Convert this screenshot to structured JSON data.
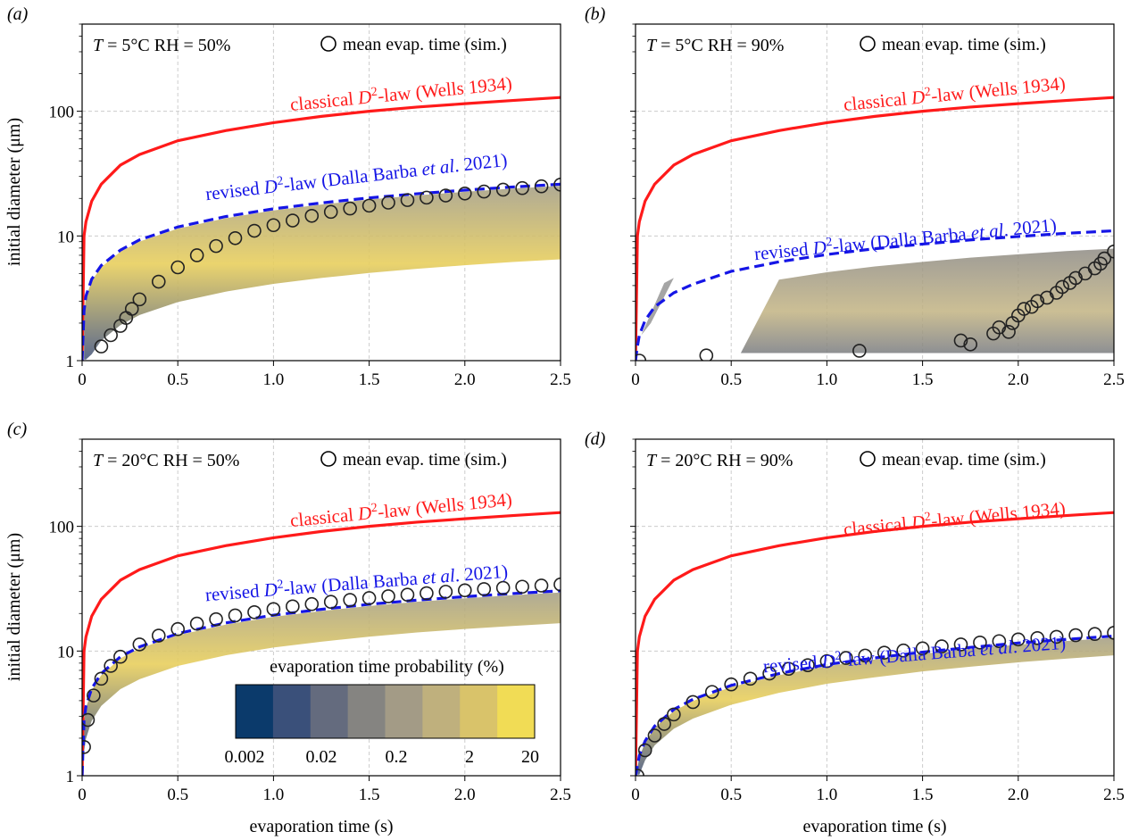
{
  "figure": {
    "ylabel": "initial diameter (μm)",
    "xlabel": "evaporation time (s)",
    "colorbar": {
      "title": "evaporation time probability (%)",
      "tick_labels": [
        "0.002",
        "0.02",
        "0.2",
        "2",
        "20"
      ],
      "colors": [
        "#0b3a6b",
        "#3a507a",
        "#646b7e",
        "#858481",
        "#a39b86",
        "#bfb07d",
        "#d9c36a",
        "#f1dc55"
      ]
    },
    "colors": {
      "classical": "#ff1a1a",
      "revised": "#1515e6",
      "marker": "#222222",
      "grid": "#cccccc"
    }
  },
  "chart_data": [
    {
      "type": "line",
      "panel_label": "(a)",
      "condition_T": "= 5°C RH = 50%",
      "legend_marker": "mean evap. time (sim.)",
      "xlim": [
        0,
        2.5
      ],
      "ylim": [
        1,
        500
      ],
      "yscale": "log",
      "x_ticks": [
        "0",
        "0.5",
        "1.0",
        "1.5",
        "2.0",
        "2.5"
      ],
      "y_ticks": [
        "1",
        "10",
        "100"
      ],
      "series": [
        {
          "name": "classical D²-law (Wells 1934)",
          "label_main": "classical ",
          "label_sup": "-law (Wells 1934)",
          "x": [
            0.01,
            0.02,
            0.05,
            0.1,
            0.2,
            0.3,
            0.5,
            0.75,
            1.0,
            1.25,
            1.5,
            1.75,
            2.0,
            2.25,
            2.5
          ],
          "y": [
            10,
            13,
            19,
            26,
            37,
            45,
            58,
            70,
            81,
            91,
            100,
            108,
            115,
            122,
            129
          ]
        },
        {
          "name": "revised D²-law (Dalla Barba et al. 2021)",
          "label_main": "revised ",
          "label_sup": "-law (Dalla Barba ",
          "label_etal": "et al",
          "label_end": ". 2021)",
          "x": [
            0.01,
            0.02,
            0.05,
            0.1,
            0.2,
            0.3,
            0.5,
            0.75,
            1.0,
            1.25,
            1.5,
            1.75,
            2.0,
            2.25,
            2.5
          ],
          "y": [
            2.5,
            3.3,
            4.5,
            5.8,
            7.7,
            9.3,
            11.8,
            14.3,
            16.5,
            18.4,
            20.2,
            21.8,
            23.3,
            24.7,
            26
          ]
        },
        {
          "name": "mean evap. time (sim.)",
          "x": [
            0.1,
            0.15,
            0.2,
            0.23,
            0.26,
            0.3,
            0.4,
            0.5,
            0.6,
            0.7,
            0.8,
            0.9,
            1.0,
            1.1,
            1.2,
            1.3,
            1.4,
            1.5,
            1.6,
            1.7,
            1.8,
            1.9,
            2.0,
            2.1,
            2.2,
            2.3,
            2.4,
            2.5
          ],
          "y": [
            1.3,
            1.6,
            1.9,
            2.2,
            2.6,
            3.1,
            4.3,
            5.6,
            7.0,
            8.3,
            9.6,
            11,
            12.2,
            13.3,
            14.5,
            15.6,
            16.6,
            17.5,
            18.5,
            19.4,
            20.3,
            21.1,
            21.9,
            22.7,
            23.5,
            24.2,
            25,
            25.8
          ]
        }
      ]
    },
    {
      "type": "line",
      "panel_label": "(b)",
      "condition_T": "= 5°C RH  = 90%",
      "legend_marker": "mean evap. time (sim.)",
      "xlim": [
        0,
        2.5
      ],
      "ylim": [
        1,
        500
      ],
      "yscale": "log",
      "x_ticks": [
        "0",
        "0.5",
        "1.0",
        "1.5",
        "2.0",
        "2.5"
      ],
      "y_ticks": [
        "1",
        "10",
        "100"
      ],
      "series": [
        {
          "name": "classical D²-law (Wells 1934)",
          "label_main": "classical ",
          "label_sup": "-law (Wells 1934)",
          "x": [
            0.01,
            0.02,
            0.05,
            0.1,
            0.2,
            0.3,
            0.5,
            0.75,
            1.0,
            1.25,
            1.5,
            1.75,
            2.0,
            2.25,
            2.5
          ],
          "y": [
            10,
            13,
            19,
            26,
            37,
            45,
            58,
            70,
            81,
            91,
            100,
            108,
            115,
            122,
            129
          ]
        },
        {
          "name": "revised D²-law (Dalla Barba et al. 2021)",
          "label_main": "revised ",
          "label_sup": "-law (Dalla Barba ",
          "label_etal": "et al",
          "label_end": ". 2021)",
          "x": [
            0.01,
            0.02,
            0.05,
            0.1,
            0.2,
            0.3,
            0.5,
            0.75,
            1.0,
            1.25,
            1.5,
            1.75,
            2.0,
            2.25,
            2.5
          ],
          "y": [
            1.3,
            1.6,
            2.1,
            2.7,
            3.5,
            4.1,
            5.2,
            6.2,
            7.1,
            7.9,
            8.6,
            9.3,
            9.9,
            10.5,
            11
          ]
        },
        {
          "name": "mean evap. time (sim.)",
          "x": [
            0.02,
            0.37,
            1.17,
            1.7,
            1.75,
            1.87,
            1.9,
            1.95,
            1.97,
            2.0,
            2.03,
            2.07,
            2.1,
            2.15,
            2.2,
            2.23,
            2.27,
            2.3,
            2.35,
            2.4,
            2.43,
            2.45,
            2.5
          ],
          "y": [
            1.0,
            1.1,
            1.2,
            1.45,
            1.35,
            1.65,
            1.85,
            1.7,
            2.0,
            2.3,
            2.6,
            2.7,
            3.0,
            3.2,
            3.5,
            3.9,
            4.2,
            4.6,
            5.0,
            5.5,
            6.0,
            6.6,
            7.5
          ]
        }
      ]
    },
    {
      "type": "line",
      "panel_label": "(c)",
      "condition_T": "= 20°C RH = 50%",
      "legend_marker": "mean evap. time (sim.)",
      "xlim": [
        0,
        2.5
      ],
      "ylim": [
        1,
        500
      ],
      "yscale": "log",
      "x_ticks": [
        "0",
        "0.5",
        "1.0",
        "1.5",
        "2.0",
        "2.5"
      ],
      "y_ticks": [
        "1",
        "10",
        "100"
      ],
      "series": [
        {
          "name": "classical D²-law (Wells 1934)",
          "label_main": "classical ",
          "label_sup": "-law (Wells 1934)",
          "x": [
            0.01,
            0.02,
            0.05,
            0.1,
            0.2,
            0.3,
            0.5,
            0.75,
            1.0,
            1.25,
            1.5,
            1.75,
            2.0,
            2.25,
            2.5
          ],
          "y": [
            10,
            13,
            19,
            26,
            37,
            45,
            58,
            70,
            81,
            91,
            100,
            108,
            115,
            122,
            129
          ]
        },
        {
          "name": "revised D²-law (Dalla Barba et al. 2021)",
          "label_main": "revised ",
          "label_sup": "-law (Dalla Barba ",
          "label_etal": "et al",
          "label_end": ". 2021)",
          "x": [
            0.01,
            0.02,
            0.05,
            0.1,
            0.2,
            0.3,
            0.5,
            0.75,
            1.0,
            1.25,
            1.5,
            1.75,
            2.0,
            2.25,
            2.5
          ],
          "y": [
            2.8,
            3.6,
            5.0,
            6.6,
            9.0,
            10.8,
            13.8,
            16.8,
            19.4,
            21.6,
            23.7,
            25.6,
            27.3,
            28.9,
            30.4
          ]
        },
        {
          "name": "mean evap. time (sim.)",
          "x": [
            0.01,
            0.03,
            0.06,
            0.1,
            0.15,
            0.2,
            0.3,
            0.4,
            0.5,
            0.6,
            0.7,
            0.8,
            0.9,
            1.0,
            1.1,
            1.2,
            1.3,
            1.4,
            1.5,
            1.6,
            1.7,
            1.8,
            1.9,
            2.0,
            2.1,
            2.2,
            2.3,
            2.4,
            2.5
          ],
          "y": [
            1.7,
            2.8,
            4.4,
            6.0,
            7.6,
            9.0,
            11.3,
            13.3,
            15.0,
            16.6,
            18.0,
            19.3,
            20.5,
            21.7,
            22.8,
            23.8,
            24.8,
            25.7,
            26.6,
            27.5,
            28.3,
            29.1,
            29.9,
            30.7,
            31.4,
            32.1,
            32.8,
            33.5,
            34.2
          ]
        }
      ]
    },
    {
      "type": "line",
      "panel_label": "(d)",
      "condition_T": "= 20°C RH = 90%",
      "legend_marker": "mean evap. time (sim.)",
      "xlim": [
        0,
        2.5
      ],
      "ylim": [
        1,
        500
      ],
      "yscale": "log",
      "x_ticks": [
        "0",
        "0.5",
        "1.0",
        "1.5",
        "2.0",
        "2.5"
      ],
      "y_ticks": [
        "1",
        "10",
        "100"
      ],
      "series": [
        {
          "name": "classical D²-law (Wells 1934)",
          "label_main": "classical ",
          "label_sup": "-law (Wells 1934)",
          "x": [
            0.01,
            0.02,
            0.05,
            0.1,
            0.2,
            0.3,
            0.5,
            0.75,
            1.0,
            1.25,
            1.5,
            1.75,
            2.0,
            2.25,
            2.5
          ],
          "y": [
            10,
            13,
            19,
            26,
            37,
            45,
            58,
            70,
            81,
            91,
            100,
            108,
            115,
            122,
            129
          ]
        },
        {
          "name": "revised D²-law (Dalla Barba et al. 2021)",
          "label_main": "revised ",
          "label_sup": "-law (Dalla Barba ",
          "label_etal": "et al",
          "label_end": ". 2021)",
          "x": [
            0.01,
            0.02,
            0.05,
            0.1,
            0.2,
            0.3,
            0.5,
            0.75,
            1.0,
            1.25,
            1.5,
            1.75,
            2.0,
            2.25,
            2.5
          ],
          "y": [
            1.2,
            1.45,
            1.9,
            2.5,
            3.4,
            4.1,
            5.3,
            6.6,
            7.8,
            8.8,
            9.8,
            10.7,
            11.6,
            12.4,
            13.2
          ]
        },
        {
          "name": "mean evap. time (sim.)",
          "x": [
            0.01,
            0.05,
            0.1,
            0.15,
            0.2,
            0.3,
            0.4,
            0.5,
            0.6,
            0.7,
            0.8,
            0.9,
            1.0,
            1.1,
            1.2,
            1.3,
            1.4,
            1.5,
            1.6,
            1.7,
            1.8,
            1.9,
            2.0,
            2.1,
            2.2,
            2.3,
            2.4,
            2.5
          ],
          "y": [
            1.0,
            1.6,
            2.1,
            2.6,
            3.1,
            3.9,
            4.7,
            5.4,
            6.0,
            6.6,
            7.2,
            7.7,
            8.3,
            8.8,
            9.2,
            9.7,
            10.1,
            10.5,
            10.9,
            11.3,
            11.7,
            12.0,
            12.4,
            12.7,
            13.0,
            13.4,
            13.7,
            14.0
          ]
        }
      ]
    }
  ]
}
